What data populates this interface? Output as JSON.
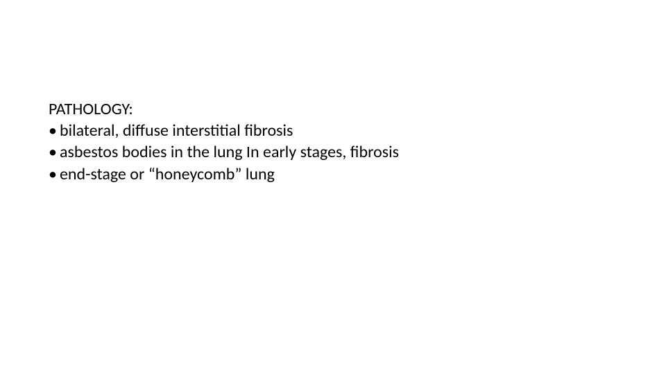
{
  "document": {
    "heading": "PATHOLOGY:",
    "bullets": [
      "bilateral, diffuse interstitial fibrosis",
      "asbestos bodies in the lung In early stages, fibrosis",
      "end-stage or “honeycomb” lung"
    ],
    "text_color": "#000000",
    "background_color": "#ffffff",
    "font_size": 24,
    "font_family": "Calibri",
    "bullet_char": "•"
  }
}
